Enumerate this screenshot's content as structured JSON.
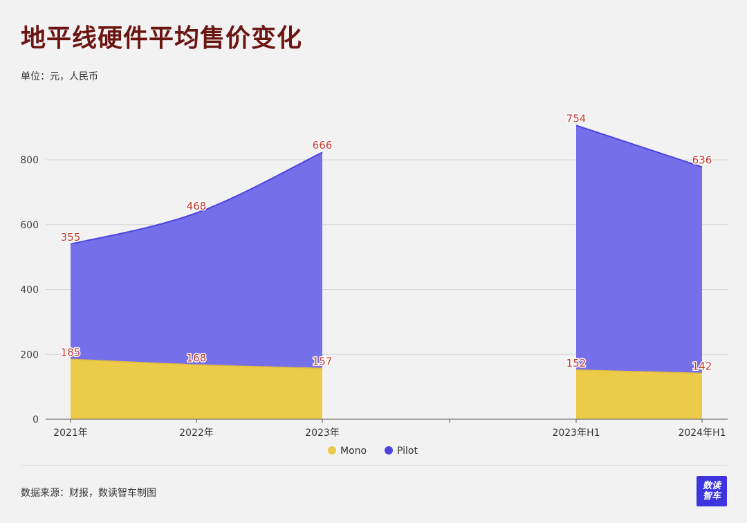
{
  "title": "地平线硬件平均售价变化",
  "unit_note": "单位：元，人民币",
  "source_note": "数据来源：财报，数读智车制图",
  "logo": {
    "line1": "数读",
    "line2": "智车"
  },
  "colors": {
    "mono": "#ecca4a",
    "pilot": "#7570ea",
    "pilot_line": "#4b43e0",
    "label": "#c0392b"
  },
  "chart_data": {
    "type": "area",
    "stacked": true,
    "categories": [
      "2021年",
      "2022年",
      "2023年",
      "",
      "2023年H1",
      "2024年H1"
    ],
    "series": [
      {
        "name": "Mono",
        "values": [
          185,
          168,
          157,
          null,
          152,
          142
        ]
      },
      {
        "name": "Pilot",
        "values": [
          355,
          468,
          666,
          null,
          754,
          636
        ]
      }
    ],
    "yticks": [
      0,
      200,
      400,
      600,
      800
    ],
    "ylim": [
      0,
      940
    ],
    "grid": true,
    "legend": "bottom-center"
  }
}
